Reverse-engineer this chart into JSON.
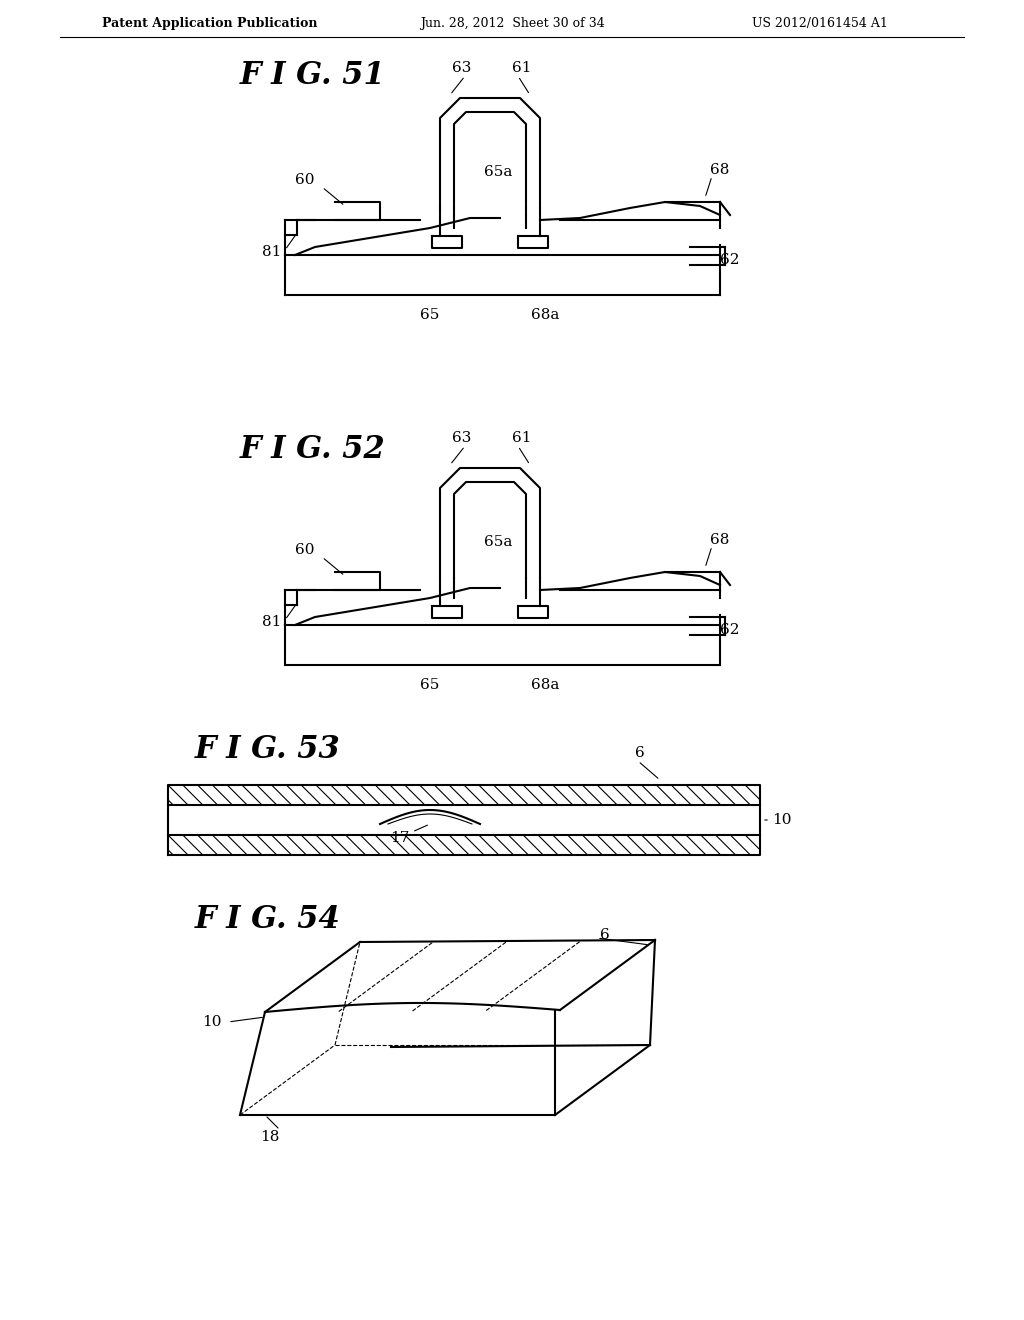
{
  "bg_color": "#ffffff",
  "header_left": "Patent Application Publication",
  "header_mid": "Jun. 28, 2012  Sheet 30 of 34",
  "header_right": "US 2012/0161454 A1",
  "fig51_title": "F I G. 51",
  "fig52_title": "F I G. 52",
  "fig53_title": "F I G. 53",
  "fig54_title": "F I G. 54",
  "line_color": "#000000",
  "font_size_header": 9,
  "font_size_fig_title": 22,
  "font_size_label": 11
}
